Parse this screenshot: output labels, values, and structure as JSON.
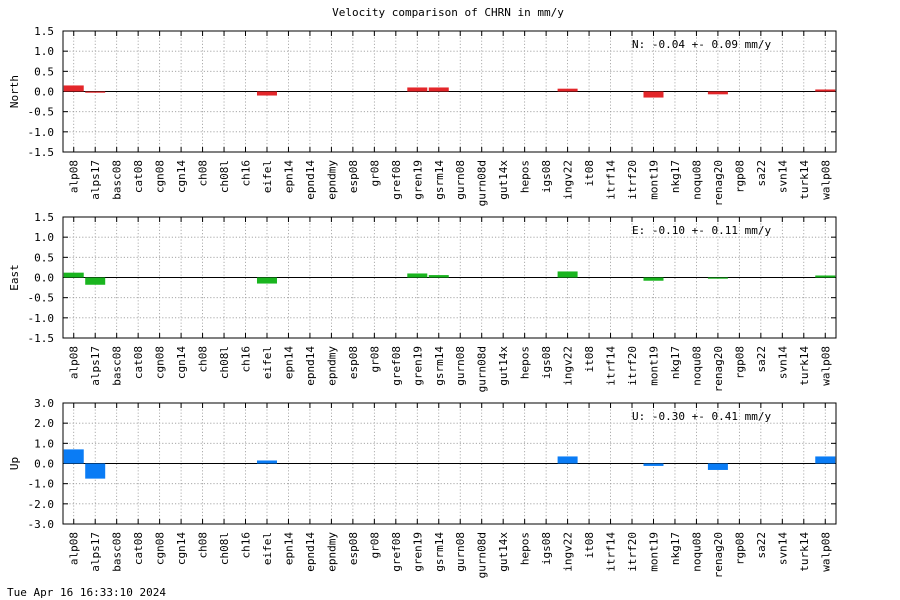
{
  "chart_data": {
    "type": "bar",
    "title": "Velocity comparison of CHRN in mm/y",
    "categories": [
      "alp08",
      "alps17",
      "basc08",
      "cat08",
      "cgn08",
      "cgn14",
      "ch08",
      "ch08l",
      "ch16",
      "eifel",
      "epn14",
      "epnd14",
      "epndmy",
      "esp08",
      "gr08",
      "gref08",
      "gren19",
      "gsrm14",
      "gurn08",
      "gurn08d",
      "gut14x",
      "hepos",
      "igs08",
      "ingv22",
      "it08",
      "itrf14",
      "itrf20",
      "mont19",
      "nkg17",
      "noqu08",
      "renag20",
      "rgp08",
      "sa22",
      "svn14",
      "turk14",
      "walp08"
    ],
    "panels": [
      {
        "ylabel": "North",
        "color": "#e3262a",
        "ylim": [
          -1.5,
          1.5
        ],
        "yticks": [
          "1.5",
          "1.0",
          "0.5",
          "0.0",
          "-0.5",
          "-1.0",
          "-1.5"
        ],
        "annotation": "N:  -0.04 +-  0.09 mm/y",
        "values": [
          0.15,
          -0.03,
          0,
          0,
          0,
          0,
          0,
          0,
          0,
          -0.1,
          0,
          0,
          0,
          0,
          0,
          0,
          0.1,
          0.1,
          0,
          0,
          0,
          0,
          0,
          0.07,
          0,
          0,
          0,
          -0.15,
          0,
          0,
          -0.07,
          0,
          0,
          0,
          0,
          0.05
        ]
      },
      {
        "ylabel": "East",
        "color": "#1ab51f",
        "ylim": [
          -1.5,
          1.5
        ],
        "yticks": [
          "1.5",
          "1.0",
          "0.5",
          "0.0",
          "-0.5",
          "-1.0",
          "-1.5"
        ],
        "annotation": "E:  -0.10 +-  0.11 mm/y",
        "values": [
          0.12,
          -0.18,
          0,
          0,
          0,
          0,
          0,
          0,
          0,
          -0.15,
          0,
          0,
          0,
          0,
          0,
          0,
          0.1,
          0.06,
          0,
          0,
          0,
          0,
          0,
          0.15,
          0,
          0,
          0,
          -0.08,
          0,
          0,
          -0.03,
          0,
          0,
          0,
          0,
          0.05
        ]
      },
      {
        "ylabel": "Up",
        "color": "#0a7cf5",
        "ylim": [
          -3.0,
          3.0
        ],
        "yticks": [
          "3.0",
          "2.0",
          "1.0",
          "0.0",
          "-1.0",
          "-2.0",
          "-3.0"
        ],
        "annotation": "U:  -0.30 +-  0.41 mm/y",
        "values": [
          0.7,
          -0.75,
          0,
          0,
          0,
          0,
          0,
          0,
          0,
          0.15,
          0,
          0,
          0,
          0,
          0,
          0,
          0,
          0,
          0,
          0,
          0,
          0,
          0,
          0.35,
          0,
          0,
          0,
          -0.12,
          0,
          0,
          -0.32,
          0,
          0,
          0,
          0,
          0.35
        ]
      }
    ],
    "grid": true
  },
  "footer": {
    "date": "Tue Apr 16 16:33:10 2024"
  }
}
